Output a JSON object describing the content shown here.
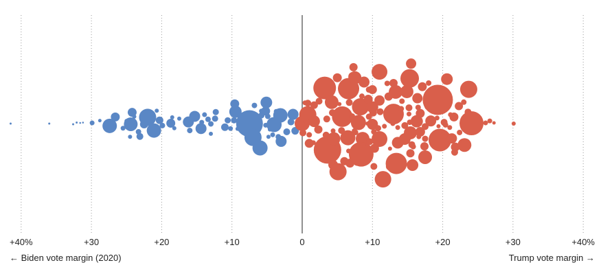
{
  "chart_data": {
    "type": "scatter",
    "title": "",
    "x_domain": [
      -40,
      40
    ],
    "tick_values": [
      -40,
      -30,
      -20,
      -10,
      0,
      10,
      20,
      30,
      40
    ],
    "tick_labels": [
      "+40%",
      "+30",
      "+20",
      "+10",
      "0",
      "+10",
      "+20",
      "+30",
      "+40%"
    ],
    "left_label": "← Biden vote margin (2020)",
    "right_label": "Trump vote margin →",
    "colors": {
      "biden": "#5a87c5",
      "trump": "#d95f4b"
    },
    "bubbles": [
      {
        "x": -41.5,
        "y": 0.0,
        "r": 1.5
      },
      {
        "x": -36.0,
        "y": 0.0,
        "r": 1.5
      },
      {
        "x": -32.6,
        "y": -0.02,
        "r": 1.5
      },
      {
        "x": -32.1,
        "y": 0.03,
        "r": 1.5
      },
      {
        "x": -31.6,
        "y": 0.02,
        "r": 1.3
      },
      {
        "x": -31.2,
        "y": 0.03,
        "r": 1.3
      },
      {
        "x": -29.9,
        "y": 0.02,
        "r": 3.5
      },
      {
        "x": -28.8,
        "y": 0.09,
        "r": 2.5
      },
      {
        "x": -27.4,
        "y": -0.07,
        "r": 10.5
      },
      {
        "x": -26.6,
        "y": 0.2,
        "r": 6.5
      },
      {
        "x": -25.5,
        "y": -0.14,
        "r": 3.5
      },
      {
        "x": -25.0,
        "y": 0.08,
        "r": 3.0
      },
      {
        "x": -24.2,
        "y": 0.34,
        "r": 6.5
      },
      {
        "x": -23.9,
        "y": 0.21,
        "r": 3.0
      },
      {
        "x": -24.4,
        "y": -0.02,
        "r": 10.0
      },
      {
        "x": -24.5,
        "y": -0.4,
        "r": 3.0
      },
      {
        "x": -23.3,
        "y": -0.25,
        "r": 4.0
      },
      {
        "x": -23.1,
        "y": -0.39,
        "r": 5.0
      },
      {
        "x": -22.8,
        "y": 0.16,
        "r": 4.0
      },
      {
        "x": -22.5,
        "y": -0.02,
        "r": 6.0
      },
      {
        "x": -22.0,
        "y": 0.19,
        "r": 12.5
      },
      {
        "x": -21.1,
        "y": -0.21,
        "r": 10.5
      },
      {
        "x": -20.7,
        "y": 0.39,
        "r": 3.0
      },
      {
        "x": -20.3,
        "y": 0.1,
        "r": 5.5
      },
      {
        "x": -19.9,
        "y": -0.06,
        "r": 4.0
      },
      {
        "x": -18.7,
        "y": 0.01,
        "r": 6.5
      },
      {
        "x": -18.5,
        "y": 0.19,
        "r": 3.0
      },
      {
        "x": -18.2,
        "y": -0.14,
        "r": 3.0
      },
      {
        "x": -17.5,
        "y": 0.15,
        "r": 3.0
      },
      {
        "x": -16.2,
        "y": 0.02,
        "r": 2.5
      },
      {
        "x": -16.2,
        "y": 0.05,
        "r": 8.0
      },
      {
        "x": -15.3,
        "y": 0.22,
        "r": 8.0
      },
      {
        "x": -16.0,
        "y": -0.21,
        "r": 4.0
      },
      {
        "x": -14.4,
        "y": -0.15,
        "r": 8.0
      },
      {
        "x": -14.3,
        "y": 0.04,
        "r": 3.5
      },
      {
        "x": -13.9,
        "y": 0.27,
        "r": 3.5
      },
      {
        "x": -13.4,
        "y": 0.13,
        "r": 4.0
      },
      {
        "x": -13.0,
        "y": -0.01,
        "r": 4.0
      },
      {
        "x": -12.4,
        "y": 0.15,
        "r": 4.5
      },
      {
        "x": -12.3,
        "y": 0.35,
        "r": 4.5
      },
      {
        "x": -13.0,
        "y": -0.31,
        "r": 3.0
      },
      {
        "x": -11.0,
        "y": -0.11,
        "r": 5.5
      },
      {
        "x": -10.6,
        "y": 0.1,
        "r": 4.5
      },
      {
        "x": -10.2,
        "y": -0.15,
        "r": 3.5
      },
      {
        "x": -9.7,
        "y": 0.1,
        "r": 4.5
      },
      {
        "x": -9.6,
        "y": 0.6,
        "r": 6.5
      },
      {
        "x": -9.5,
        "y": 0.36,
        "r": 9.0
      },
      {
        "x": -9.2,
        "y": -0.16,
        "r": 3.0
      },
      {
        "x": -7.5,
        "y": 0.0,
        "r": 19.5
      },
      {
        "x": -7.0,
        "y": -0.42,
        "r": 12.5
      },
      {
        "x": -6.8,
        "y": 0.55,
        "r": 4.0
      },
      {
        "x": -6.0,
        "y": -0.74,
        "r": 11.0
      },
      {
        "x": -5.8,
        "y": 0.25,
        "r": 4.5
      },
      {
        "x": -5.8,
        "y": 0.38,
        "r": 3.5
      },
      {
        "x": -5.1,
        "y": 0.64,
        "r": 8.5
      },
      {
        "x": -5.2,
        "y": 0.38,
        "r": 6.5
      },
      {
        "x": -4.9,
        "y": 0.22,
        "r": 4.0
      },
      {
        "x": -5.2,
        "y": -0.05,
        "r": 3.5
      },
      {
        "x": -4.6,
        "y": -0.18,
        "r": 3.0
      },
      {
        "x": -4.0,
        "y": -0.03,
        "r": 11.0
      },
      {
        "x": -4.8,
        "y": -0.4,
        "r": 3.0
      },
      {
        "x": -4.2,
        "y": -0.34,
        "r": 3.5
      },
      {
        "x": -3.7,
        "y": 0.37,
        "r": 3.5
      },
      {
        "x": -3.1,
        "y": 0.25,
        "r": 10.5
      },
      {
        "x": -3.0,
        "y": -0.54,
        "r": 8.0
      },
      {
        "x": -3.4,
        "y": -0.4,
        "r": 4.0
      },
      {
        "x": -2.2,
        "y": -0.25,
        "r": 5.0
      },
      {
        "x": -1.6,
        "y": 0.05,
        "r": 5.0
      },
      {
        "x": -1.3,
        "y": 0.28,
        "r": 8.0
      },
      {
        "x": -0.6,
        "y": 0.05,
        "r": 3.5
      },
      {
        "x": -1.0,
        "y": -0.22,
        "r": 5.5
      },
      {
        "x": 0.0,
        "y": 0.0,
        "r": 11.0
      },
      {
        "x": 0.2,
        "y": 0.4,
        "r": 4.0
      },
      {
        "x": 0.1,
        "y": -0.28,
        "r": 5.0
      },
      {
        "x": 0.8,
        "y": 0.62,
        "r": 5.0
      },
      {
        "x": 0.4,
        "y": 0.63,
        "r": 3.5
      },
      {
        "x": 0.6,
        "y": 0.33,
        "r": 3.5
      },
      {
        "x": 0.8,
        "y": 0.27,
        "r": 12.5
      },
      {
        "x": 2.1,
        "y": 0.06,
        "r": 4.0
      },
      {
        "x": 1.0,
        "y": -0.34,
        "r": 4.0
      },
      {
        "x": 1.7,
        "y": 0.07,
        "r": 8.5
      },
      {
        "x": 1.0,
        "y": -0.6,
        "r": 6.5
      },
      {
        "x": 2.3,
        "y": -0.18,
        "r": 6.0
      },
      {
        "x": 1.6,
        "y": -0.58,
        "r": 3.5
      },
      {
        "x": 1.7,
        "y": 0.56,
        "r": 5.5
      },
      {
        "x": 2.4,
        "y": 0.68,
        "r": 5.0
      },
      {
        "x": 3.2,
        "y": 1.08,
        "r": 16.5
      },
      {
        "x": 3.6,
        "y": -0.8,
        "r": 20.0
      },
      {
        "x": 3.4,
        "y": -0.35,
        "r": 5.0
      },
      {
        "x": 3.5,
        "y": 0.14,
        "r": 5.0
      },
      {
        "x": 4.5,
        "y": -0.46,
        "r": 9.5
      },
      {
        "x": 4.2,
        "y": 0.65,
        "r": 10.0
      },
      {
        "x": 4.3,
        "y": 0.33,
        "r": 5.0
      },
      {
        "x": 4.4,
        "y": -0.22,
        "r": 3.5
      },
      {
        "x": 5.0,
        "y": 1.39,
        "r": 6.5
      },
      {
        "x": 5.3,
        "y": 0.59,
        "r": 3.0
      },
      {
        "x": 4.4,
        "y": -1.25,
        "r": 7.0
      },
      {
        "x": 5.1,
        "y": -1.46,
        "r": 12.5
      },
      {
        "x": 5.7,
        "y": 0.21,
        "r": 15.0
      },
      {
        "x": 6.2,
        "y": 0.96,
        "r": 3.5
      },
      {
        "x": 5.6,
        "y": -0.21,
        "r": 5.0
      },
      {
        "x": 6.0,
        "y": -1.14,
        "r": 6.0
      },
      {
        "x": 6.5,
        "y": -0.43,
        "r": 11.0
      },
      {
        "x": 6.6,
        "y": -0.83,
        "r": 3.5
      },
      {
        "x": 6.6,
        "y": 1.06,
        "r": 15.5
      },
      {
        "x": 6.7,
        "y": 0.64,
        "r": 5.0
      },
      {
        "x": 6.8,
        "y": -1.2,
        "r": 6.5
      },
      {
        "x": 7.1,
        "y": 0.22,
        "r": 4.5
      },
      {
        "x": 7.4,
        "y": -0.22,
        "r": 3.5
      },
      {
        "x": 7.2,
        "y": 1.43,
        "r": 6.5
      },
      {
        "x": 7.5,
        "y": 1.39,
        "r": 9.5
      },
      {
        "x": 7.3,
        "y": 1.71,
        "r": 6.0
      },
      {
        "x": 7.6,
        "y": -0.27,
        "r": 4.0
      },
      {
        "x": 7.8,
        "y": -1.18,
        "r": 5.0
      },
      {
        "x": 8.0,
        "y": 0.03,
        "r": 11.0
      },
      {
        "x": 8.3,
        "y": 0.51,
        "r": 12.5
      },
      {
        "x": 8.5,
        "y": 0.83,
        "r": 4.0
      },
      {
        "x": 8.4,
        "y": -0.93,
        "r": 18.0
      },
      {
        "x": 8.6,
        "y": -0.46,
        "r": 10.0
      },
      {
        "x": 8.7,
        "y": -0.65,
        "r": 4.0
      },
      {
        "x": 8.8,
        "y": 1.26,
        "r": 8.0
      },
      {
        "x": 9.4,
        "y": 0.74,
        "r": 6.5
      },
      {
        "x": 9.5,
        "y": 1.03,
        "r": 4.5
      },
      {
        "x": 9.5,
        "y": 0.21,
        "r": 4.5
      },
      {
        "x": 9.3,
        "y": 0.0,
        "r": 3.0
      },
      {
        "x": 9.6,
        "y": -0.55,
        "r": 5.0
      },
      {
        "x": 10.0,
        "y": 1.03,
        "r": 6.5
      },
      {
        "x": 10.0,
        "y": 0.5,
        "r": 8.5
      },
      {
        "x": 10.1,
        "y": 0.33,
        "r": 5.5
      },
      {
        "x": 10.2,
        "y": -0.25,
        "r": 4.0
      },
      {
        "x": 10.0,
        "y": -0.02,
        "r": 8.0
      },
      {
        "x": 10.3,
        "y": -0.75,
        "r": 6.5
      },
      {
        "x": 10.2,
        "y": -1.3,
        "r": 5.0
      },
      {
        "x": 10.8,
        "y": -0.14,
        "r": 4.5
      },
      {
        "x": 11.0,
        "y": 1.57,
        "r": 11.5
      },
      {
        "x": 11.0,
        "y": 0.7,
        "r": 7.5
      },
      {
        "x": 11.1,
        "y": 0.36,
        "r": 5.0
      },
      {
        "x": 11.0,
        "y": -0.47,
        "r": 11.5
      },
      {
        "x": 11.5,
        "y": -1.69,
        "r": 12.0
      },
      {
        "x": 11.7,
        "y": -0.08,
        "r": 3.5
      },
      {
        "x": 12.1,
        "y": 1.22,
        "r": 4.0
      },
      {
        "x": 12.3,
        "y": 0.82,
        "r": 6.0
      },
      {
        "x": 12.5,
        "y": 0.29,
        "r": 8.0
      },
      {
        "x": 12.5,
        "y": -0.76,
        "r": 3.0
      },
      {
        "x": 12.5,
        "y": -1.3,
        "r": 6.0
      },
      {
        "x": 12.9,
        "y": 0.0,
        "r": 3.5
      },
      {
        "x": 13.0,
        "y": 0.29,
        "r": 15.0
      },
      {
        "x": 13.1,
        "y": 1.1,
        "r": 3.5
      },
      {
        "x": 13.0,
        "y": 1.23,
        "r": 6.0
      },
      {
        "x": 13.3,
        "y": 0.96,
        "r": 10.0
      },
      {
        "x": 13.6,
        "y": -0.58,
        "r": 8.5
      },
      {
        "x": 13.4,
        "y": -1.21,
        "r": 15.5
      },
      {
        "x": 13.6,
        "y": -0.12,
        "r": 3.5
      },
      {
        "x": 14.1,
        "y": 0.45,
        "r": 4.0
      },
      {
        "x": 14.2,
        "y": 0.68,
        "r": 4.0
      },
      {
        "x": 14.5,
        "y": 1.32,
        "r": 4.0
      },
      {
        "x": 14.6,
        "y": -0.06,
        "r": 5.0
      },
      {
        "x": 14.6,
        "y": -0.47,
        "r": 8.5
      },
      {
        "x": 14.9,
        "y": 0.97,
        "r": 9.5
      },
      {
        "x": 15.2,
        "y": 0.48,
        "r": 5.0
      },
      {
        "x": 15.2,
        "y": 0.29,
        "r": 3.5
      },
      {
        "x": 15.3,
        "y": 1.37,
        "r": 13.5
      },
      {
        "x": 15.3,
        "y": 0.04,
        "r": 4.0
      },
      {
        "x": 15.4,
        "y": -0.28,
        "r": 9.5
      },
      {
        "x": 15.4,
        "y": -0.9,
        "r": 6.0
      },
      {
        "x": 15.6,
        "y": -0.64,
        "r": 5.0
      },
      {
        "x": 15.5,
        "y": 1.82,
        "r": 7.5
      },
      {
        "x": 15.7,
        "y": -1.26,
        "r": 8.5
      },
      {
        "x": 15.8,
        "y": -0.7,
        "r": 4.0
      },
      {
        "x": 16.3,
        "y": 0.07,
        "r": 9.0
      },
      {
        "x": 16.4,
        "y": 0.77,
        "r": 7.5
      },
      {
        "x": 16.5,
        "y": 0.49,
        "r": 4.0
      },
      {
        "x": 16.6,
        "y": -0.4,
        "r": 3.5
      },
      {
        "x": 16.8,
        "y": 0.31,
        "r": 6.5
      },
      {
        "x": 16.8,
        "y": -0.25,
        "r": 7.0
      },
      {
        "x": 17.1,
        "y": 1.12,
        "r": 6.5
      },
      {
        "x": 17.5,
        "y": -0.09,
        "r": 5.0
      },
      {
        "x": 17.4,
        "y": -0.69,
        "r": 6.0
      },
      {
        "x": 17.5,
        "y": -1.02,
        "r": 10.0
      },
      {
        "x": 17.5,
        "y": -0.46,
        "r": 4.5
      },
      {
        "x": 17.9,
        "y": 0.52,
        "r": 5.0
      },
      {
        "x": 18.0,
        "y": 1.23,
        "r": 4.0
      },
      {
        "x": 18.3,
        "y": 0.08,
        "r": 8.0
      },
      {
        "x": 18.6,
        "y": -0.52,
        "r": 4.5
      },
      {
        "x": 18.6,
        "y": -0.35,
        "r": 4.0
      },
      {
        "x": 18.8,
        "y": 0.45,
        "r": 3.5
      },
      {
        "x": 19.0,
        "y": -0.32,
        "r": 5.5
      },
      {
        "x": 19.2,
        "y": 0.17,
        "r": 3.5
      },
      {
        "x": 19.3,
        "y": 0.72,
        "r": 22.0
      },
      {
        "x": 19.6,
        "y": -0.5,
        "r": 16.5
      },
      {
        "x": 19.4,
        "y": -0.08,
        "r": 3.0
      },
      {
        "x": 20.2,
        "y": -0.35,
        "r": 5.0
      },
      {
        "x": 20.2,
        "y": 0.04,
        "r": 5.0
      },
      {
        "x": 20.4,
        "y": -0.04,
        "r": 4.0
      },
      {
        "x": 20.6,
        "y": 1.35,
        "r": 8.5
      },
      {
        "x": 21.0,
        "y": -0.12,
        "r": 3.5
      },
      {
        "x": 21.1,
        "y": 0.27,
        "r": 3.5
      },
      {
        "x": 21.3,
        "y": -0.45,
        "r": 7.5
      },
      {
        "x": 21.6,
        "y": 0.2,
        "r": 6.5
      },
      {
        "x": 21.8,
        "y": -0.71,
        "r": 6.5
      },
      {
        "x": 21.7,
        "y": -0.87,
        "r": 5.0
      },
      {
        "x": 22.3,
        "y": 0.53,
        "r": 6.0
      },
      {
        "x": 22.4,
        "y": -0.27,
        "r": 4.0
      },
      {
        "x": 23.0,
        "y": 0.65,
        "r": 4.0
      },
      {
        "x": 23.1,
        "y": -0.65,
        "r": 10.0
      },
      {
        "x": 23.7,
        "y": 1.04,
        "r": 12.5
      },
      {
        "x": 23.6,
        "y": 0.35,
        "r": 5.0
      },
      {
        "x": 24.1,
        "y": 0.01,
        "r": 17.5
      },
      {
        "x": 26.1,
        "y": 0.02,
        "r": 3.5
      },
      {
        "x": 26.7,
        "y": 0.08,
        "r": 3.5
      },
      {
        "x": 27.3,
        "y": 0.02,
        "r": 2.5
      },
      {
        "x": 30.1,
        "y": 0.0,
        "r": 3.0
      }
    ]
  }
}
